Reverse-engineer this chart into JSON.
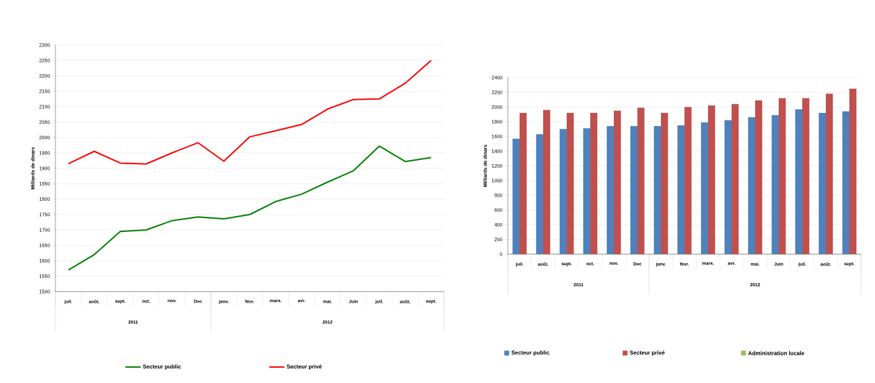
{
  "chart_data": [
    {
      "type": "line",
      "ylabel": "Milliards de dinars",
      "categories": [
        "juil.",
        "août.",
        "sept.",
        "oct.",
        "nov.",
        "Dec",
        "janv.",
        "févr.",
        "mars.",
        "avr.",
        "mai.",
        "Juin",
        "juil.",
        "août.",
        "sept."
      ],
      "series": [
        {
          "name": "Secteur public",
          "color": "#008000",
          "values": [
            1570,
            1620,
            1695,
            1700,
            1730,
            1742,
            1736,
            1750,
            1792,
            1816,
            1855,
            1892,
            1972,
            1922,
            1935
          ]
        },
        {
          "name": "Secteur privé",
          "color": "#ff0000",
          "values": [
            1915,
            1955,
            1917,
            1914,
            1950,
            1983,
            1923,
            2002,
            2022,
            2042,
            2092,
            2123,
            2125,
            2176,
            2250
          ]
        }
      ],
      "ylim": [
        1500,
        2300
      ],
      "yticks": [
        1500,
        1550,
        1600,
        1650,
        1700,
        1750,
        1800,
        1850,
        1900,
        1950,
        2000,
        2050,
        2100,
        2150,
        2200,
        2250,
        2300
      ],
      "grid": "y",
      "legend": "bottom",
      "marker": "none",
      "line_style": "solid",
      "annotations": [
        "2011",
        "2012"
      ]
    },
    {
      "type": "bar",
      "ylabel": "Milliards de dinars",
      "categories": [
        "juil.",
        "août.",
        "sept.",
        "oct.",
        "nov.",
        "Dec",
        "janv.",
        "févr.",
        "mars.",
        "avr.",
        "mai.",
        "Juin",
        "juil.",
        "août.",
        "sept."
      ],
      "series": [
        {
          "name": "Secteur public",
          "color": "#4f81bd",
          "values": [
            1570,
            1630,
            1700,
            1710,
            1740,
            1740,
            1740,
            1750,
            1790,
            1820,
            1860,
            1890,
            1970,
            1920,
            1940
          ]
        },
        {
          "name": "Secteur privé",
          "color": "#c0504d",
          "values": [
            1920,
            1960,
            1920,
            1920,
            1950,
            1990,
            1920,
            2000,
            2020,
            2040,
            2090,
            2120,
            2120,
            2180,
            2250
          ]
        },
        {
          "name": "Administration locale",
          "color": "#9bbb59",
          "values": [
            null,
            null,
            null,
            null,
            null,
            null,
            null,
            null,
            null,
            null,
            null,
            null,
            null,
            null,
            null
          ]
        }
      ],
      "ylim": [
        0,
        2400
      ],
      "yticks": [
        0,
        200,
        400,
        600,
        800,
        1000,
        1200,
        1400,
        1600,
        1800,
        2000,
        2200,
        2400
      ],
      "grid": "y",
      "legend": "bottom",
      "annotations": [
        "2011",
        "2012"
      ]
    }
  ]
}
